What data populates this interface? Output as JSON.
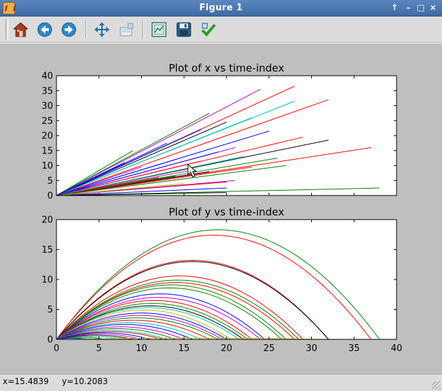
{
  "window": {
    "title": "Figure 1",
    "controls": [
      "↑",
      "–",
      "□",
      "×"
    ]
  },
  "toolbar": {
    "tools": [
      {
        "name": "home-icon",
        "label": "Home"
      },
      {
        "name": "back-arrow-icon",
        "label": "Back"
      },
      {
        "name": "forward-arrow-icon",
        "label": "Forward"
      },
      {
        "name": "pan-icon",
        "label": "Pan"
      },
      {
        "name": "zoom-icon",
        "label": "Zoom"
      },
      {
        "name": "subplots-icon",
        "label": "Configure subplots"
      },
      {
        "name": "save-icon",
        "label": "Save"
      },
      {
        "name": "check-icon",
        "label": "Edit"
      }
    ]
  },
  "status": {
    "text": "x=15.4839     y=10.2083"
  },
  "colors": [
    "#0000ff",
    "#008000",
    "#ff0000",
    "#00bfbf",
    "#bf00bf",
    "#bfbf00",
    "#000000"
  ],
  "chart_data": [
    {
      "type": "line",
      "title": "Plot of x vs time-index",
      "xlim": [
        0,
        40
      ],
      "ylim": [
        0,
        40
      ],
      "xticks": [],
      "yticks": [
        0,
        5,
        10,
        15,
        20,
        25,
        30,
        35,
        40
      ],
      "series": [
        {
          "color": "#008000",
          "end": [
            38,
            2.5
          ]
        },
        {
          "color": "#000000",
          "end": [
            20,
            1.0
          ]
        },
        {
          "color": "#ff0000",
          "end": [
            20,
            4.5
          ]
        },
        {
          "color": "#0000ff",
          "end": [
            20,
            2.5
          ]
        },
        {
          "color": "#ff0000",
          "end": [
            37,
            16
          ]
        },
        {
          "color": "#000000",
          "end": [
            32,
            18.5
          ]
        },
        {
          "color": "#ff0000",
          "end": [
            29,
            19.5
          ]
        },
        {
          "color": "#008000",
          "end": [
            27,
            10
          ]
        },
        {
          "color": "#008000",
          "end": [
            26,
            12.5
          ]
        },
        {
          "color": "#ff0000",
          "end": [
            23,
            9.5
          ]
        },
        {
          "color": "#ff0000",
          "end": [
            32,
            32
          ]
        },
        {
          "color": "#ff0000",
          "end": [
            28,
            36.5
          ]
        },
        {
          "color": "#bf00bf",
          "end": [
            24,
            35.5
          ]
        },
        {
          "color": "#00bfbf",
          "end": [
            28,
            31.5
          ]
        },
        {
          "color": "#000000",
          "end": [
            20,
            24.5
          ]
        },
        {
          "color": "#0000ff",
          "end": [
            25,
            21.5
          ]
        },
        {
          "color": "#008000",
          "end": [
            18,
            27.5
          ]
        },
        {
          "color": "#bf00bf",
          "end": [
            21,
            16
          ]
        },
        {
          "color": "#00bfbf",
          "end": [
            23,
            26
          ]
        },
        {
          "color": "#ff0000",
          "end": [
            17,
            11.5
          ]
        },
        {
          "color": "#0000ff",
          "end": [
            19,
            14.5
          ]
        },
        {
          "color": "#008000",
          "end": [
            15,
            19.5
          ]
        },
        {
          "color": "#bf00bf",
          "end": [
            16,
            8.5
          ]
        },
        {
          "color": "#0000ff",
          "end": [
            14,
            12
          ]
        },
        {
          "color": "#00bfbf",
          "end": [
            22,
            13
          ]
        },
        {
          "color": "#bf00bf",
          "end": [
            21,
            5.0
          ]
        },
        {
          "color": "#ff0000",
          "end": [
            12,
            6.0
          ]
        },
        {
          "color": "#0000ff",
          "end": [
            17,
            22
          ]
        },
        {
          "color": "#008000",
          "end": [
            9,
            15
          ]
        },
        {
          "color": "#0000ff",
          "end": [
            13,
            17.5
          ]
        },
        {
          "color": "#ff0000",
          "end": [
            11,
            5.0
          ]
        },
        {
          "color": "#bf00bf",
          "end": [
            10,
            9.5
          ]
        },
        {
          "color": "#bfbf00",
          "end": [
            15,
            4.0
          ]
        },
        {
          "color": "#000000",
          "end": [
            18,
            8.0
          ]
        },
        {
          "color": "#008000",
          "end": [
            14,
            6.5
          ]
        },
        {
          "color": "#0000ff",
          "end": [
            8,
            11
          ]
        }
      ]
    },
    {
      "type": "line",
      "title": "Plot of y vs time-index",
      "xlim": [
        0,
        40
      ],
      "ylim": [
        0,
        20
      ],
      "xticks": [
        0,
        5,
        10,
        15,
        20,
        25,
        30,
        35,
        40
      ],
      "yticks": [
        0,
        5,
        10,
        15,
        20
      ],
      "series": [
        {
          "color": "#008000",
          "range": 38,
          "peak": 18.3
        },
        {
          "color": "#ff0000",
          "range": 37,
          "peak": 17.4
        },
        {
          "color": "#ff0000",
          "range": 32,
          "peak": 13.2
        },
        {
          "color": "#000000",
          "range": 32,
          "peak": 13.0
        },
        {
          "color": "#ff0000",
          "range": 29,
          "peak": 10.6
        },
        {
          "color": "#008000",
          "range": 28.5,
          "peak": 9.9
        },
        {
          "color": "#ff0000",
          "range": 28,
          "peak": 9.5
        },
        {
          "color": "#008000",
          "range": 27,
          "peak": 9.1
        },
        {
          "color": "#008000",
          "range": 26.5,
          "peak": 8.6
        },
        {
          "color": "#0000ff",
          "range": 24.5,
          "peak": 7.6
        },
        {
          "color": "#bf00bf",
          "range": 24,
          "peak": 7.0
        },
        {
          "color": "#ff0000",
          "range": 23,
          "peak": 6.5
        },
        {
          "color": "#008000",
          "range": 22.5,
          "peak": 6.0
        },
        {
          "color": "#000000",
          "range": 22,
          "peak": 5.6
        },
        {
          "color": "#00bfbf",
          "range": 21.5,
          "peak": 5.3
        },
        {
          "color": "#bfbf00",
          "range": 20.5,
          "peak": 4.9
        },
        {
          "color": "#0000ff",
          "range": 20,
          "peak": 4.4
        },
        {
          "color": "#bf00bf",
          "range": 19.5,
          "peak": 4.0
        },
        {
          "color": "#008000",
          "range": 19,
          "peak": 3.6
        },
        {
          "color": "#ff0000",
          "range": 18,
          "peak": 3.2
        },
        {
          "color": "#00bfbf",
          "range": 17,
          "peak": 2.8
        },
        {
          "color": "#0000ff",
          "range": 16,
          "peak": 2.5
        },
        {
          "color": "#bf00bf",
          "range": 15,
          "peak": 2.1
        },
        {
          "color": "#008000",
          "range": 14,
          "peak": 1.8
        },
        {
          "color": "#00bfbf",
          "range": 13,
          "peak": 1.5
        },
        {
          "color": "#ff0000",
          "range": 12.5,
          "peak": 1.3
        },
        {
          "color": "#0000ff",
          "range": 11,
          "peak": 1.1
        },
        {
          "color": "#bf00bf",
          "range": 10,
          "peak": 0.9
        },
        {
          "color": "#000000",
          "range": 9,
          "peak": 0.7
        },
        {
          "color": "#00bfbf",
          "range": 8,
          "peak": 0.5
        },
        {
          "color": "#008000",
          "range": 6,
          "peak": 0.35
        },
        {
          "color": "#0000ff",
          "range": 4,
          "peak": 0.2
        },
        {
          "color": "#bfbf00",
          "range": 31,
          "peak": 0.2
        }
      ]
    }
  ]
}
